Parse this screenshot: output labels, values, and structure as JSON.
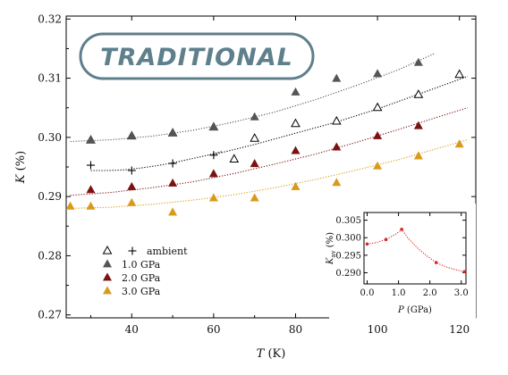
{
  "badge": {
    "text": "TRADITIONAL"
  },
  "colors": {
    "ambient": "#000000",
    "p1": "#555555",
    "p2": "#7a1212",
    "p3": "#d99a1a",
    "inset": "#dd2222",
    "badge_border": "#5e7f8c",
    "badge_fill": "#ffffff"
  },
  "chart_data": [
    {
      "type": "scatter",
      "xlabel_var": "T",
      "xlabel_unit": "(K)",
      "ylabel_var": "K",
      "ylabel_unit": "(%)",
      "xlim": [
        24,
        124
      ],
      "ylim": [
        0.2695,
        0.3205
      ],
      "xticks": [
        40,
        60,
        80,
        100,
        120
      ],
      "yticks": [
        0.27,
        0.28,
        0.29,
        0.3,
        0.31,
        0.32
      ],
      "ytick_labels": [
        "0.27",
        "0.28",
        "0.29",
        "0.30",
        "0.31",
        "0.32"
      ],
      "legend_position": "lower-left",
      "legend": [
        {
          "key": "ambient",
          "label": "ambient"
        },
        {
          "key": "p1",
          "label": "1.0 GPa"
        },
        {
          "key": "p2",
          "label": "2.0 GPa"
        },
        {
          "key": "p3",
          "label": "3.0 GPa"
        }
      ],
      "series": [
        {
          "key": "ambient_open",
          "marker": "open-triangle",
          "color_key": "ambient",
          "x": [
            30,
            40,
            50,
            60,
            65,
            70,
            80,
            90,
            100,
            110,
            120
          ],
          "y": [
            0.2995,
            0.3002,
            0.3007,
            0.3017,
            0.2963,
            0.2998,
            0.3023,
            0.3027,
            0.305,
            0.3072,
            0.3106
          ]
        },
        {
          "key": "ambient_plus",
          "marker": "plus",
          "color_key": "ambient",
          "x": [
            30,
            40,
            50,
            60
          ],
          "y": [
            0.2953,
            0.2944,
            0.2956,
            0.297
          ]
        },
        {
          "key": "p1",
          "marker": "filled-triangle",
          "color_key": "p1",
          "x": [
            30,
            40,
            50,
            60,
            70,
            80,
            90,
            100,
            110
          ],
          "y": [
            0.2995,
            0.3002,
            0.3007,
            0.3017,
            0.3034,
            0.3076,
            0.3099,
            0.3107,
            0.3126
          ]
        },
        {
          "key": "p2",
          "marker": "filled-triangle",
          "color_key": "p2",
          "x": [
            30,
            40,
            50,
            60,
            70,
            80,
            90,
            100,
            110
          ],
          "y": [
            0.2911,
            0.2916,
            0.2922,
            0.2938,
            0.2955,
            0.2977,
            0.2983,
            0.3002,
            0.3019
          ]
        },
        {
          "key": "p3",
          "marker": "filled-triangle",
          "color_key": "p3",
          "x": [
            25,
            30,
            40,
            50,
            60,
            70,
            80,
            90,
            100,
            110,
            120
          ],
          "y": [
            0.2883,
            0.2883,
            0.2889,
            0.2873,
            0.2897,
            0.2897,
            0.2916,
            0.2923,
            0.2951,
            0.2968,
            0.2988
          ]
        }
      ],
      "fits": [
        {
          "key": "fit_ambient_low",
          "color_key": "ambient",
          "x": [
            30,
            34,
            38,
            42,
            46,
            50,
            54,
            58,
            62
          ],
          "y": [
            0.2944,
            0.2944,
            0.2945,
            0.2948,
            0.2952,
            0.2957,
            0.2963,
            0.2969,
            0.2976
          ]
        },
        {
          "key": "fit_p1",
          "color_key": "p1",
          "x": [
            25,
            35,
            45,
            55,
            65,
            75,
            85,
            95,
            105,
            114
          ],
          "y": [
            0.2993,
            0.2996,
            0.3002,
            0.3012,
            0.3026,
            0.3043,
            0.3064,
            0.3088,
            0.3114,
            0.3142
          ]
        },
        {
          "key": "fit_ambient_open",
          "color_key": "ambient",
          "x": [
            60,
            70,
            80,
            90,
            100,
            110,
            122
          ],
          "y": [
            0.2971,
            0.2988,
            0.3007,
            0.3026,
            0.3048,
            0.3073,
            0.3103
          ]
        },
        {
          "key": "fit_p2",
          "color_key": "p2",
          "x": [
            25,
            35,
            45,
            55,
            65,
            75,
            85,
            95,
            105,
            115,
            122
          ],
          "y": [
            0.2902,
            0.2907,
            0.2915,
            0.2925,
            0.2939,
            0.2955,
            0.2972,
            0.2992,
            0.3013,
            0.3035,
            0.305
          ]
        },
        {
          "key": "fit_p3",
          "color_key": "p3",
          "x": [
            25,
            35,
            45,
            55,
            65,
            75,
            85,
            95,
            105,
            115,
            122
          ],
          "y": [
            0.288,
            0.2882,
            0.2887,
            0.2894,
            0.2903,
            0.2915,
            0.2929,
            0.2945,
            0.2962,
            0.2982,
            0.2996
          ]
        }
      ]
    },
    {
      "type": "line",
      "xlabel_var": "P",
      "xlabel_unit": "(GPa)",
      "ylabel_var": "K",
      "ylabel_sub": "av",
      "ylabel_unit": "(%)",
      "xlim": [
        -0.1,
        3.15
      ],
      "ylim": [
        0.2868,
        0.3072
      ],
      "xticks": [
        0.0,
        1.0,
        2.0,
        3.0
      ],
      "xtick_labels": [
        "0.0",
        "1.0",
        "2.0",
        "3.0"
      ],
      "yticks": [
        0.29,
        0.295,
        0.3,
        0.305
      ],
      "ytick_labels": [
        "0.290",
        "0.295",
        "0.300",
        "0.305"
      ],
      "points": {
        "x": [
          0.0,
          0.6,
          1.1,
          2.2,
          3.1
        ],
        "y": [
          0.2982,
          0.2995,
          0.3024,
          0.2929,
          0.2903
        ]
      },
      "curve": {
        "x": [
          0.0,
          0.3,
          0.6,
          0.85,
          1.05,
          1.1,
          1.3,
          1.6,
          1.9,
          2.2,
          2.5,
          2.8,
          3.1
        ],
        "y": [
          0.2982,
          0.2986,
          0.2995,
          0.3007,
          0.3019,
          0.3024,
          0.2999,
          0.2971,
          0.2948,
          0.2929,
          0.2917,
          0.2909,
          0.2903
        ]
      }
    }
  ]
}
